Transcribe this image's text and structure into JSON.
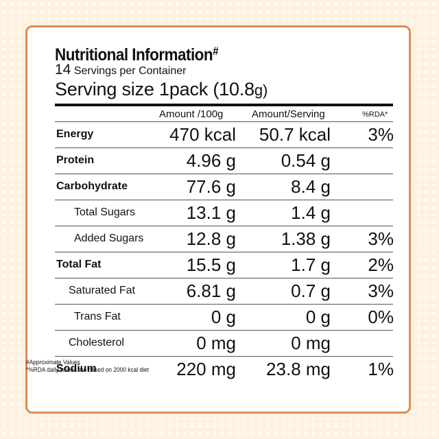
{
  "title": "Nutritional Information",
  "title_mark": "#",
  "servings_count": "14",
  "servings_text": "Servings per Container",
  "serving_size_label": "Serving size",
  "serving_size_num": "1",
  "serving_size_pack": "pack",
  "serving_size_amount": "(10.8",
  "serving_size_unit": "g)",
  "headers": {
    "per100": "Amount /100g",
    "perServing": "Amount/Serving",
    "rda": "%RDA*"
  },
  "rows": [
    {
      "name": "Energy",
      "per100": "470 kcal",
      "perServing": "50.7 kcal",
      "rda": "3%"
    },
    {
      "name": "Protein",
      "per100": "4.96 g",
      "perServing": "0.54 g",
      "rda": ""
    },
    {
      "name": "Carbohydrate",
      "per100": "77.6 g",
      "perServing": "8.4 g",
      "rda": ""
    },
    {
      "name": "Total Sugars",
      "per100": "13.1 g",
      "perServing": "1.4 g",
      "rda": ""
    },
    {
      "name": "Added Sugars",
      "per100": "12.8 g",
      "perServing": "1.38 g",
      "rda": "3%"
    },
    {
      "name": "Total Fat",
      "per100": "15.5 g",
      "perServing": "1.7 g",
      "rda": "2%"
    },
    {
      "name": "Saturated Fat",
      "per100": "6.81 g",
      "perServing": "0.7 g",
      "rda": "3%"
    },
    {
      "name": "Trans Fat",
      "per100": "0 g",
      "perServing": "0 g",
      "rda": "0%"
    },
    {
      "name": "Cholesterol",
      "per100": "0 mg",
      "perServing": "0 mg",
      "rda": ""
    },
    {
      "name": "Sodium",
      "per100": "220 mg",
      "perServing": "23.8 mg",
      "rda": "1%"
    }
  ],
  "footnotes": [
    "#Approximate Values",
    "*%RDA daily values are based on 2000 kcal diet"
  ],
  "colors": {
    "border": "#e08a55",
    "background": "#fdf2e2"
  }
}
